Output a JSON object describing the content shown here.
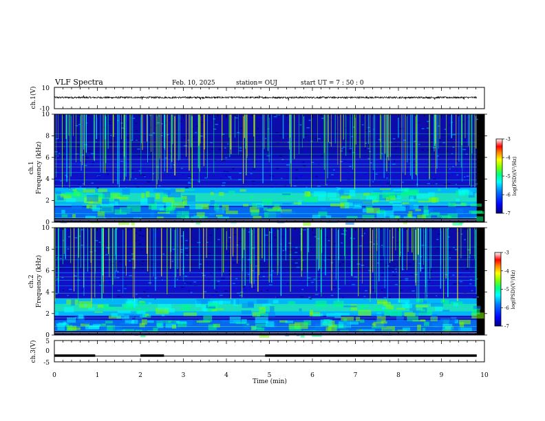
{
  "header": {
    "title": "VLF Spectra",
    "date": "Feb. 10, 2025",
    "station": "station= OUJ",
    "start": "start  UT =   7 : 50 : 0"
  },
  "colors": {
    "colormap": [
      "#000080",
      "#0000ff",
      "#0080ff",
      "#00ffff",
      "#00ff80",
      "#80ff00",
      "#ffff00",
      "#ff8000",
      "#ff0000",
      "#ffffff"
    ],
    "trace": "#000000"
  },
  "chart_data": [
    {
      "type": "line",
      "ylabel": "ch.1(V)",
      "ylim": [
        -10,
        10
      ],
      "yticks": [
        "10",
        "-10"
      ],
      "description_level": 0.5,
      "xlim": [
        0,
        10
      ]
    },
    {
      "type": "heatmap",
      "ylabel_lines": [
        "ch.1",
        "Frequency  (kHz)"
      ],
      "ylim": [
        0,
        10
      ],
      "yticks": [
        "0",
        "2",
        "4",
        "6",
        "8",
        "10"
      ],
      "xlim": [
        0,
        10
      ],
      "colorbar": {
        "label": "log(PSD)(V²/Hz)",
        "range": [
          -7,
          -3
        ],
        "ticks": [
          "-3",
          "-4",
          "-5",
          "-6",
          "-7"
        ]
      },
      "bands_khz": [
        [
          1.5,
          3.2
        ],
        [
          0.2,
          1.4
        ]
      ]
    },
    {
      "type": "heatmap",
      "ylabel_lines": [
        "ch.2",
        "Frequency  (kHz)"
      ],
      "ylim": [
        0,
        10
      ],
      "yticks": [
        "0",
        "2",
        "4",
        "6",
        "8",
        "10"
      ],
      "xlim": [
        0,
        10
      ],
      "colorbar": {
        "label": "log(PSD)(V²/Hz)",
        "range": [
          -7,
          -3
        ],
        "ticks": [
          "-3",
          "-4",
          "-5",
          "-6",
          "-7"
        ]
      },
      "bands_khz": [
        [
          1.8,
          3.4
        ],
        [
          0.3,
          1.4
        ]
      ]
    },
    {
      "type": "line",
      "ylabel": "ch.3(V)",
      "ylim": [
        -5,
        5
      ],
      "yticks": [
        "5",
        "0",
        "-5"
      ],
      "xlim": [
        0,
        10
      ],
      "xticks": [
        "0",
        "1",
        "2",
        "3",
        "4",
        "5",
        "6",
        "7",
        "8",
        "9",
        "10"
      ],
      "xlabel": "Time  (min)",
      "high_segments_min": [
        [
          0,
          0.95
        ],
        [
          2.0,
          2.55
        ],
        [
          4.9,
          9.82
        ]
      ],
      "high_value": -2,
      "low_value": -2.3
    }
  ]
}
